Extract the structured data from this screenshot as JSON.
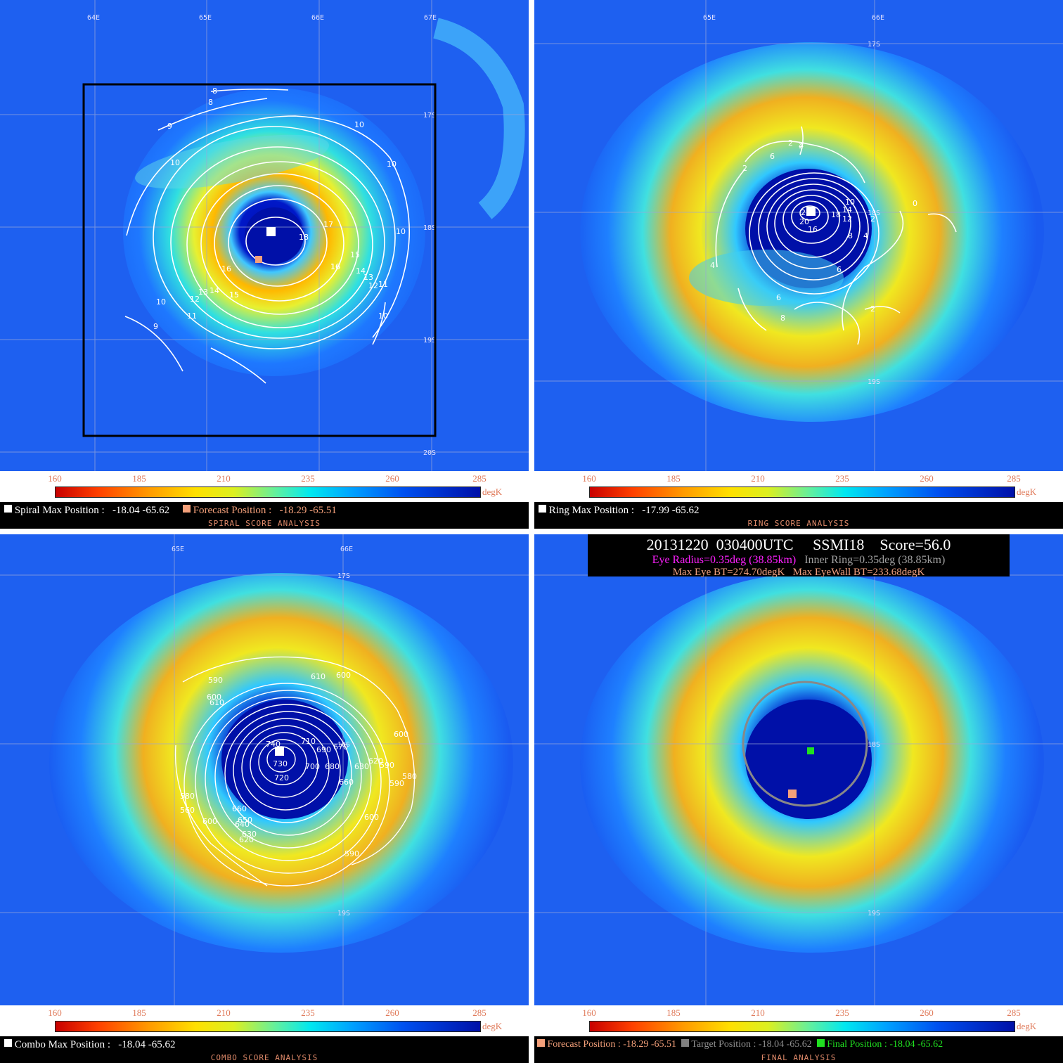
{
  "colorbar": {
    "ticks": [
      "160",
      "185",
      "210",
      "235",
      "260",
      "285"
    ],
    "unit": "degK"
  },
  "lon_labels": {
    "spiral": [
      "64E",
      "65E",
      "66E",
      "67E"
    ],
    "ring": [
      "65E",
      "66E"
    ],
    "combo": [
      "65E",
      "66E"
    ],
    "final": []
  },
  "lat_labels": {
    "spiral": [
      "17S",
      "18S",
      "19S",
      "20S"
    ],
    "ring": [
      "17S",
      "18S",
      "19S"
    ],
    "combo": [
      "17S",
      "18S",
      "19S"
    ],
    "final": [
      "18S",
      "19S"
    ]
  },
  "spiral": {
    "title": "SPIRAL SCORE ANALYSIS",
    "max_label": "Spiral Max Position :",
    "max_value": "-18.04 -65.62",
    "forecast_label": "Forecast Position :",
    "forecast_value": "-18.29 -65.51",
    "contour_labels": [
      "8",
      "8",
      "9",
      "10",
      "10",
      "10",
      "10",
      "16",
      "17",
      "18",
      "16",
      "15",
      "16",
      "15",
      "14",
      "13",
      "12",
      "11",
      "10",
      "13",
      "14",
      "15",
      "12",
      "11",
      "10",
      "9"
    ]
  },
  "ring": {
    "title": "RING SCORE ANALYSIS",
    "max_label": "Ring Max Position :",
    "max_value": "-17.99 -65.62",
    "contour_labels": [
      "2",
      "4",
      "6",
      "2",
      "22",
      "20",
      "18",
      "16",
      "14",
      "12",
      "10",
      "8",
      "6",
      "4",
      "2",
      "0",
      "4",
      "2",
      "6",
      "8",
      "2"
    ]
  },
  "combo": {
    "title": "COMBO SCORE ANALYSIS",
    "max_label": "Combo Max Position :",
    "max_value": "-18.04 -65.62",
    "contour_labels": [
      "590",
      "600",
      "610",
      "610",
      "600",
      "740",
      "710",
      "730",
      "720",
      "690",
      "700",
      "670",
      "680",
      "660",
      "630",
      "620",
      "600",
      "580",
      "590",
      "580",
      "560",
      "590",
      "600",
      "660",
      "650",
      "640",
      "630",
      "620",
      "600",
      "590"
    ]
  },
  "final": {
    "title": "FINAL ANALYSIS",
    "header_line1": "20131220  030400UTC     SSMI18    Score=56.0",
    "eye_radius": "Eye Radius=0.35deg (38.85km)",
    "inner_ring": "Inner Ring=0.35deg (38.85km)",
    "max_eye_bt": "Max Eye BT=274.70degK",
    "max_eyewall_bt": "Max EyeWall BT=233.68degK",
    "forecast_label": "Forecast Position :",
    "forecast_value": "-18.29 -65.51",
    "target_label": "Target Position :",
    "target_value": "-18.04 -65.62",
    "final_label": "Final Position :",
    "final_value": "-18.04 -65.62"
  },
  "colors": {
    "spiral_max_marker": "#ffffff",
    "forecast_marker": "#f4a07a",
    "target_marker": "#808080",
    "final_marker": "#20e020",
    "eye_radius_text": "#ff20ff",
    "inner_ring_text": "#a0a0a0",
    "header_bt_text": "#f0a080"
  }
}
